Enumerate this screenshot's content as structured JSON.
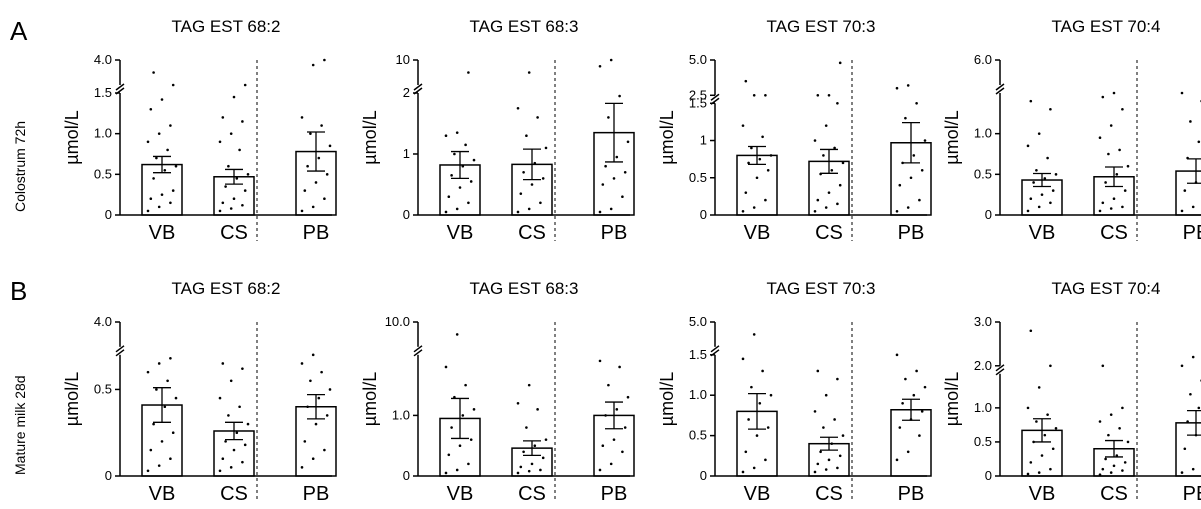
{
  "panel_labels": [
    "A",
    "B"
  ],
  "row_labels": [
    "Colostrum 72h",
    "Mature milk 28d"
  ],
  "chart_data": [
    {
      "type": "bar",
      "title": "TAG EST 68:2",
      "ylabel": "µmol/L",
      "categories": [
        "VB",
        "CS",
        "PB"
      ],
      "axis": {
        "segments": [
          [
            0,
            1.5,
            0.83
          ],
          [
            3.9,
            4.0,
            0.17
          ]
        ],
        "ticks": [
          "0",
          "0.5",
          "1.0",
          "1.5",
          "4.0"
        ]
      },
      "values": [
        0.62,
        0.47,
        0.78
      ],
      "sem": [
        0.1,
        0.09,
        0.24
      ],
      "points": [
        [
          0.05,
          0.1,
          0.15,
          0.2,
          0.25,
          0.3,
          0.45,
          0.55,
          0.6,
          0.7,
          0.8,
          0.9,
          1.0,
          1.1,
          1.3,
          1.42,
          1.55,
          3.95
        ],
        [
          0.05,
          0.08,
          0.12,
          0.15,
          0.2,
          0.3,
          0.35,
          0.45,
          0.5,
          0.6,
          0.8,
          0.9,
          1.0,
          1.15,
          1.2,
          1.45,
          1.55
        ],
        [
          0.05,
          0.1,
          0.2,
          0.3,
          0.4,
          0.5,
          0.6,
          0.7,
          0.85,
          1.0,
          1.1,
          1.2,
          3.98,
          4.0
        ]
      ]
    },
    {
      "type": "bar",
      "title": "TAG EST 68:3",
      "ylabel": "µmol/L",
      "categories": [
        "VB",
        "CS",
        "PB"
      ],
      "axis": {
        "segments": [
          [
            0,
            2,
            0.83
          ],
          [
            9.8,
            10,
            0.17
          ]
        ],
        "ticks": [
          "0",
          "1",
          "2",
          "10"
        ]
      },
      "values": [
        0.82,
        0.83,
        1.35
      ],
      "sem": [
        0.22,
        0.25,
        0.48
      ],
      "points": [
        [
          0.05,
          0.1,
          0.2,
          0.3,
          0.45,
          0.55,
          0.65,
          0.8,
          0.9,
          1.0,
          1.15,
          1.3,
          1.35,
          9.9
        ],
        [
          0.05,
          0.1,
          0.2,
          0.35,
          0.5,
          0.6,
          0.7,
          0.85,
          1.1,
          1.3,
          1.6,
          1.75,
          9.9
        ],
        [
          0.05,
          0.1,
          0.3,
          0.5,
          0.6,
          0.7,
          0.8,
          0.95,
          1.2,
          1.6,
          1.95,
          9.95,
          10.0
        ]
      ]
    },
    {
      "type": "bar",
      "title": "TAG EST 70:3",
      "ylabel": "µmol/L",
      "categories": [
        "VB",
        "CS",
        "PB"
      ],
      "axis": {
        "segments": [
          [
            0,
            1.5,
            0.76
          ],
          [
            2.5,
            5.0,
            0.24
          ]
        ],
        "ticks": [
          "0",
          "0.5",
          "1",
          "1.5",
          "2.5",
          "5.0"
        ]
      },
      "values": [
        0.8,
        0.72,
        0.97
      ],
      "sem": [
        0.12,
        0.16,
        0.27
      ],
      "points": [
        [
          0.05,
          0.1,
          0.2,
          0.3,
          0.5,
          0.6,
          0.7,
          0.75,
          0.8,
          0.9,
          1.05,
          1.2,
          1.55,
          1.8,
          3.5
        ],
        [
          0.05,
          0.1,
          0.15,
          0.2,
          0.3,
          0.4,
          0.55,
          0.6,
          0.7,
          0.8,
          0.9,
          1.0,
          1.2,
          1.5,
          1.7,
          2.0,
          4.8
        ],
        [
          0.05,
          0.1,
          0.2,
          0.4,
          0.5,
          0.6,
          0.7,
          0.8,
          1.0,
          1.3,
          1.5,
          3.0,
          3.2
        ]
      ]
    },
    {
      "type": "bar",
      "title": "TAG EST 70:4",
      "ylabel": "µmol/L",
      "categories": [
        "VB",
        "CS",
        "PB"
      ],
      "axis": {
        "segments": [
          [
            0,
            1.5,
            0.83
          ],
          [
            5.9,
            6.0,
            0.17
          ]
        ],
        "ticks": [
          "0",
          "0.5",
          "1.0",
          "6.0"
        ]
      },
      "values": [
        0.43,
        0.47,
        0.54
      ],
      "sem": [
        0.08,
        0.12,
        0.15
      ],
      "points": [
        [
          0.05,
          0.1,
          0.15,
          0.2,
          0.25,
          0.3,
          0.4,
          0.45,
          0.5,
          0.55,
          0.7,
          0.85,
          1.0,
          1.3,
          1.4
        ],
        [
          0.05,
          0.08,
          0.1,
          0.15,
          0.2,
          0.3,
          0.4,
          0.5,
          0.6,
          0.75,
          0.8,
          0.95,
          1.1,
          1.3,
          1.45,
          1.5
        ],
        [
          0.05,
          0.1,
          0.2,
          0.3,
          0.4,
          0.55,
          0.7,
          0.9,
          1.0,
          1.15,
          1.4,
          1.5
        ]
      ]
    },
    {
      "type": "bar",
      "title": "TAG EST 68:2",
      "ylabel": "µmol/L",
      "categories": [
        "VB",
        "CS",
        "PB"
      ],
      "axis": {
        "segments": [
          [
            0,
            0.7,
            0.83
          ],
          [
            3.9,
            4.0,
            0.17
          ]
        ],
        "ticks": [
          "0",
          "0.5",
          "4.0"
        ]
      },
      "values": [
        0.41,
        0.26,
        0.4
      ],
      "sem": [
        0.1,
        0.05,
        0.07
      ],
      "points": [
        [
          0.03,
          0.06,
          0.1,
          0.15,
          0.2,
          0.25,
          0.3,
          0.4,
          0.45,
          0.5,
          0.55,
          0.6,
          0.65,
          0.68
        ],
        [
          0.03,
          0.05,
          0.08,
          0.1,
          0.15,
          0.18,
          0.2,
          0.25,
          0.3,
          0.35,
          0.4,
          0.45,
          0.55,
          0.62,
          0.65
        ],
        [
          0.05,
          0.1,
          0.15,
          0.2,
          0.3,
          0.35,
          0.4,
          0.45,
          0.5,
          0.55,
          0.6,
          0.65,
          0.7
        ]
      ]
    },
    {
      "type": "bar",
      "title": "TAG EST 68:3",
      "ylabel": "µmol/L",
      "categories": [
        "VB",
        "CS",
        "PB"
      ],
      "axis": {
        "segments": [
          [
            0,
            2.0,
            0.83
          ],
          [
            9.8,
            10.0,
            0.17
          ]
        ],
        "ticks": [
          "0",
          "1.0",
          "10.0"
        ]
      },
      "values": [
        0.95,
        0.46,
        1.0
      ],
      "sem": [
        0.33,
        0.12,
        0.22
      ],
      "points": [
        [
          0.05,
          0.1,
          0.2,
          0.35,
          0.5,
          0.6,
          0.8,
          1.0,
          1.1,
          1.3,
          1.5,
          1.8,
          9.9
        ],
        [
          0.05,
          0.08,
          0.1,
          0.15,
          0.2,
          0.3,
          0.4,
          0.5,
          0.6,
          0.8,
          1.1,
          1.2,
          1.5
        ],
        [
          0.1,
          0.2,
          0.4,
          0.5,
          0.6,
          0.8,
          1.0,
          1.1,
          1.3,
          1.5,
          1.8,
          1.9
        ]
      ]
    },
    {
      "type": "bar",
      "title": "TAG EST 70:3",
      "ylabel": "µmol/L",
      "categories": [
        "VB",
        "CS",
        "PB"
      ],
      "axis": {
        "segments": [
          [
            0,
            1.5,
            0.83
          ],
          [
            4.9,
            5.0,
            0.17
          ]
        ],
        "ticks": [
          "0",
          "0.5",
          "1.0",
          "1.5",
          "5.0"
        ]
      },
      "values": [
        0.8,
        0.4,
        0.82
      ],
      "sem": [
        0.22,
        0.08,
        0.13
      ],
      "points": [
        [
          0.05,
          0.1,
          0.2,
          0.3,
          0.5,
          0.6,
          0.7,
          0.9,
          1.0,
          1.1,
          1.3,
          1.45,
          4.95
        ],
        [
          0.05,
          0.08,
          0.1,
          0.15,
          0.2,
          0.25,
          0.3,
          0.4,
          0.5,
          0.6,
          0.7,
          0.8,
          1.0,
          1.2,
          1.3
        ],
        [
          0.2,
          0.3,
          0.5,
          0.6,
          0.7,
          0.8,
          0.9,
          1.0,
          1.1,
          1.2,
          1.3,
          1.5
        ]
      ]
    },
    {
      "type": "bar",
      "title": "TAG EST 70:4",
      "ylabel": "µmol/L",
      "categories": [
        "VB",
        "CS",
        "PB"
      ],
      "axis": {
        "segments": [
          [
            0,
            1.5,
            0.7
          ],
          [
            2.0,
            3.0,
            0.3
          ]
        ],
        "ticks": [
          "0",
          "0.5",
          "1.0",
          "2.0",
          "3.0"
        ]
      },
      "values": [
        0.67,
        0.4,
        0.78
      ],
      "sem": [
        0.17,
        0.12,
        0.18
      ],
      "points": [
        [
          0.03,
          0.05,
          0.1,
          0.2,
          0.3,
          0.4,
          0.5,
          0.6,
          0.7,
          0.8,
          0.9,
          1.0,
          1.3,
          1.8,
          2.8
        ],
        [
          0.02,
          0.05,
          0.08,
          0.1,
          0.15,
          0.2,
          0.25,
          0.3,
          0.5,
          0.6,
          0.7,
          0.8,
          0.9,
          1.0,
          1.9
        ],
        [
          0.05,
          0.1,
          0.2,
          0.4,
          0.6,
          0.7,
          0.8,
          1.0,
          1.1,
          1.2,
          1.4,
          1.6,
          2.2,
          2.4
        ]
      ]
    }
  ]
}
